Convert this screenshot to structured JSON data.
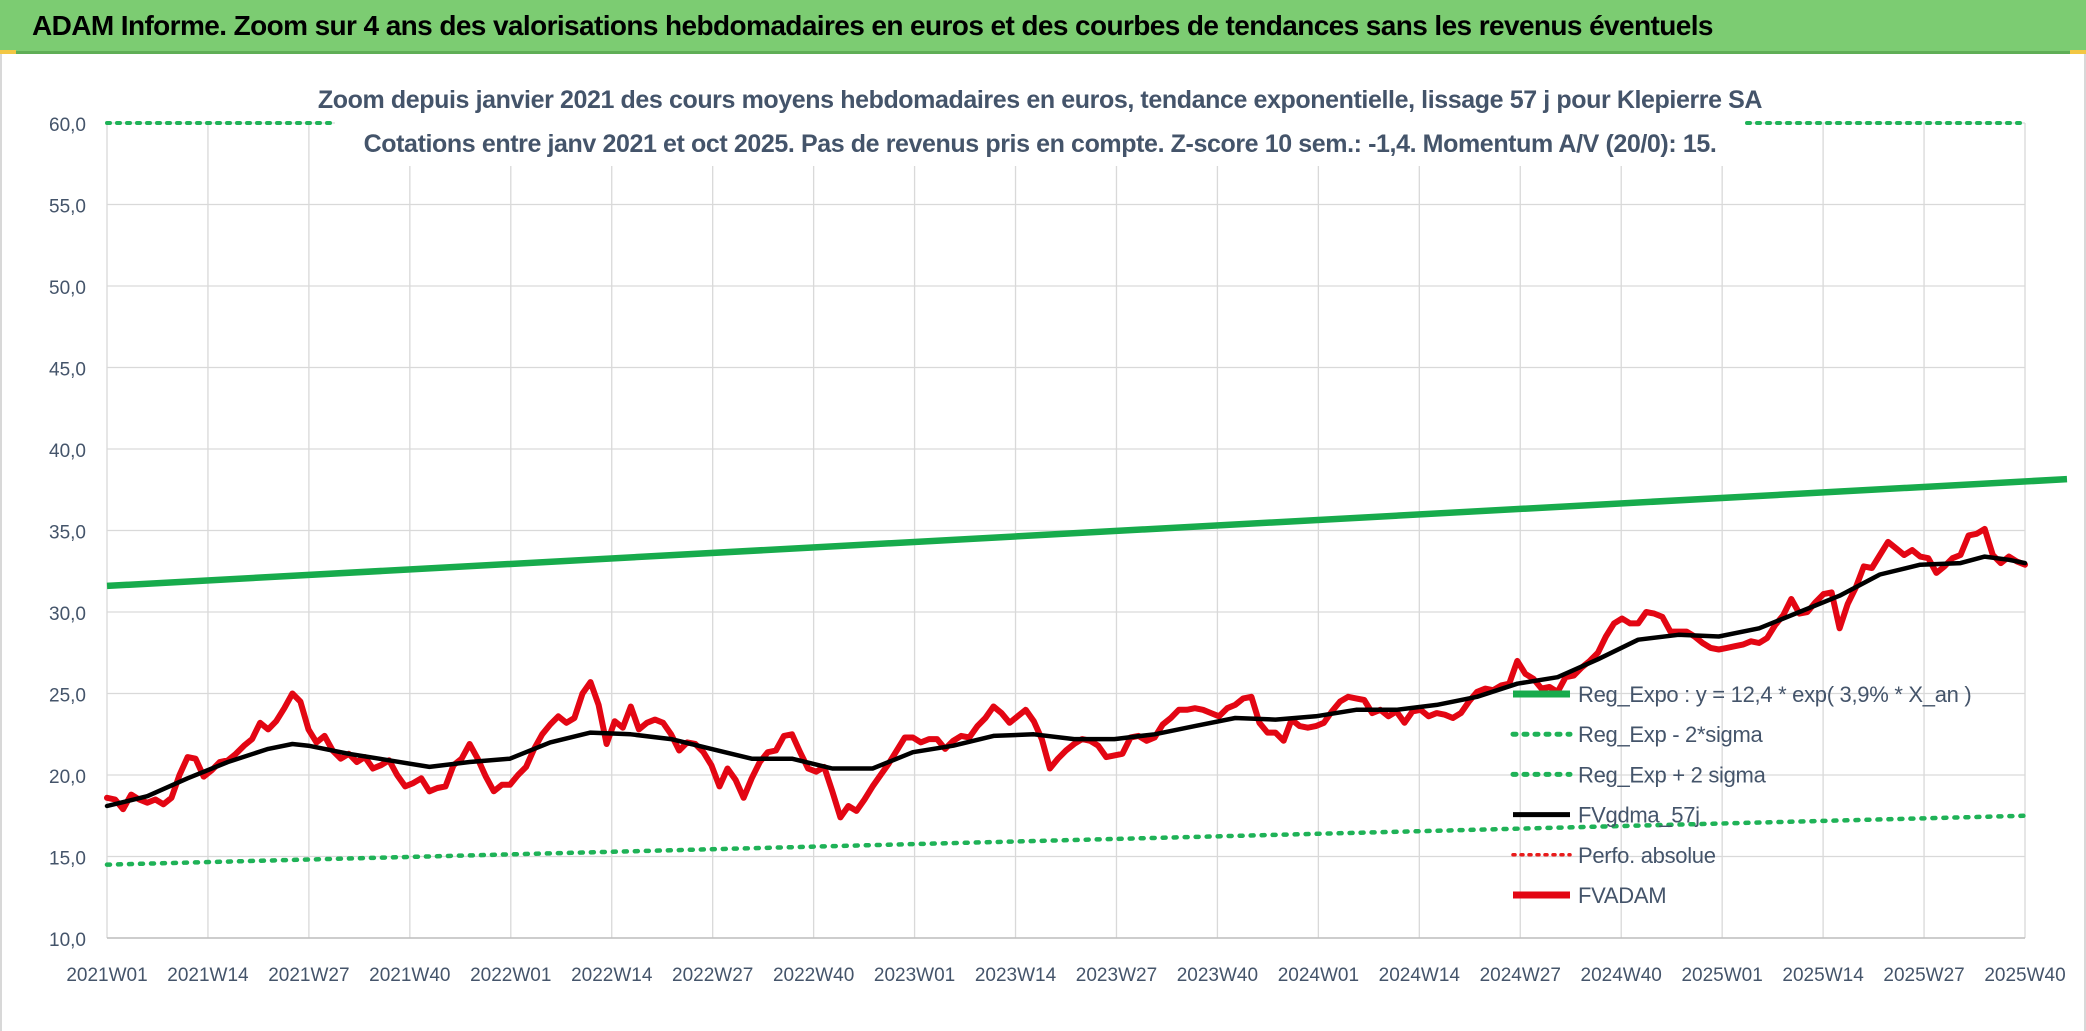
{
  "banner": {
    "title": "ADAM Informe. Zoom sur 4 ans des valorisations hebdomadaires en euros et des courbes de tendances sans les revenus éventuels"
  },
  "colors": {
    "banner_bg": "#7ccc72",
    "reg_expo": "#17ab4c",
    "reg_sigma": "#1fb257",
    "fvgdma": "#000000",
    "perfo": "#e81b1b",
    "fvadam": "#e30613",
    "text": "#44546a",
    "grid": "#d9d9d9"
  },
  "chart_data": {
    "type": "line",
    "title_line1": "Zoom depuis janvier 2021 des cours moyens hebdomadaires en euros, tendance exponentielle, lissage 57 j pour Klepierre SA",
    "title_line2": "Cotations entre janv 2021 et oct 2025. Pas de revenus pris en compte. Z-score 10 sem.: -1,4. Momentum A/V (20/0): 15.",
    "ylim": [
      10,
      60
    ],
    "y_ticks": [
      "10,0",
      "15,0",
      "20,0",
      "25,0",
      "30,0",
      "35,0",
      "40,0",
      "45,0",
      "50,0",
      "55,0",
      "60,0"
    ],
    "x_ticks": [
      "2021W01",
      "2021W14",
      "2021W27",
      "2021W40",
      "2022W01",
      "2022W14",
      "2022W27",
      "2022W40",
      "2023W01",
      "2023W14",
      "2023W27",
      "2023W40",
      "2024W01",
      "2024W14",
      "2024W27",
      "2024W40",
      "2025W01",
      "2025W14",
      "2025W27",
      "2025W40"
    ],
    "grid": true,
    "legend_position": "right-middle",
    "legend": [
      {
        "key": "reg_expo",
        "label": "Reg_Expo : y = 12,4 * exp( 3,9% *  X_an )",
        "style": "solid-thick"
      },
      {
        "key": "reg_minus",
        "label": "Reg_Exp - 2*sigma",
        "style": "dotted"
      },
      {
        "key": "reg_plus",
        "label": "Reg_Exp + 2 sigma",
        "style": "dotted"
      },
      {
        "key": "fvgdma",
        "label": "FVgdma_57j",
        "style": "solid"
      },
      {
        "key": "perfo",
        "label": "Perfo. absolue",
        "style": "dotted"
      },
      {
        "key": "fvadam",
        "label": "FVADAM",
        "style": "solid-thick"
      }
    ],
    "series": {
      "reg_expo": {
        "start": 31.6,
        "end": 38.1
      },
      "reg_minus": {
        "start": 14.5,
        "end": 17.5
      },
      "reg_plus": {
        "value": 60.0
      },
      "fvadam": [
        [
          0,
          18.6
        ],
        [
          1,
          18.5
        ],
        [
          2,
          17.9
        ],
        [
          3,
          18.8
        ],
        [
          4,
          18.5
        ],
        [
          5,
          18.3
        ],
        [
          6,
          18.5
        ],
        [
          7,
          18.2
        ],
        [
          8,
          18.6
        ],
        [
          9,
          20.0
        ],
        [
          10,
          21.1
        ],
        [
          11,
          21.0
        ],
        [
          12,
          19.9
        ],
        [
          13,
          20.3
        ],
        [
          14,
          20.8
        ],
        [
          15,
          20.9
        ],
        [
          16,
          21.3
        ],
        [
          17,
          21.8
        ],
        [
          18,
          22.2
        ],
        [
          19,
          23.2
        ],
        [
          20,
          22.8
        ],
        [
          21,
          23.3
        ],
        [
          22,
          24.1
        ],
        [
          23,
          25.0
        ],
        [
          24,
          24.5
        ],
        [
          25,
          22.8
        ],
        [
          26,
          22.0
        ],
        [
          27,
          22.4
        ],
        [
          28,
          21.5
        ],
        [
          29,
          21.0
        ],
        [
          30,
          21.3
        ],
        [
          31,
          20.8
        ],
        [
          32,
          21.1
        ],
        [
          33,
          20.4
        ],
        [
          34,
          20.6
        ],
        [
          35,
          20.9
        ],
        [
          36,
          20.0
        ],
        [
          37,
          19.3
        ],
        [
          38,
          19.5
        ],
        [
          39,
          19.8
        ],
        [
          40,
          19.0
        ],
        [
          41,
          19.2
        ],
        [
          42,
          19.3
        ],
        [
          43,
          20.6
        ],
        [
          44,
          21.0
        ],
        [
          45,
          21.9
        ],
        [
          46,
          21.0
        ],
        [
          47,
          19.9
        ],
        [
          48,
          19.0
        ],
        [
          49,
          19.4
        ],
        [
          50,
          19.4
        ],
        [
          51,
          20.0
        ],
        [
          52,
          20.5
        ],
        [
          53,
          21.6
        ],
        [
          54,
          22.5
        ],
        [
          55,
          23.1
        ],
        [
          56,
          23.6
        ],
        [
          57,
          23.2
        ],
        [
          58,
          23.5
        ],
        [
          59,
          25.0
        ],
        [
          60,
          25.7
        ],
        [
          61,
          24.3
        ],
        [
          62,
          21.9
        ],
        [
          63,
          23.3
        ],
        [
          64,
          22.9
        ],
        [
          65,
          24.2
        ],
        [
          66,
          22.8
        ],
        [
          67,
          23.2
        ],
        [
          68,
          23.4
        ],
        [
          69,
          23.2
        ],
        [
          70,
          22.5
        ],
        [
          71,
          21.5
        ],
        [
          72,
          22.0
        ],
        [
          73,
          21.9
        ],
        [
          74,
          21.4
        ],
        [
          75,
          20.6
        ],
        [
          76,
          19.3
        ],
        [
          77,
          20.4
        ],
        [
          78,
          19.7
        ],
        [
          79,
          18.6
        ],
        [
          80,
          19.8
        ],
        [
          81,
          20.8
        ],
        [
          82,
          21.4
        ],
        [
          83,
          21.5
        ],
        [
          84,
          22.4
        ],
        [
          85,
          22.5
        ],
        [
          86,
          21.4
        ],
        [
          87,
          20.4
        ],
        [
          88,
          20.2
        ],
        [
          89,
          20.5
        ],
        [
          90,
          19.0
        ],
        [
          91,
          17.4
        ],
        [
          92,
          18.1
        ],
        [
          93,
          17.8
        ],
        [
          94,
          18.5
        ],
        [
          95,
          19.3
        ],
        [
          96,
          20.0
        ],
        [
          97,
          20.7
        ],
        [
          98,
          21.5
        ],
        [
          99,
          22.3
        ],
        [
          100,
          22.3
        ],
        [
          101,
          22.0
        ],
        [
          102,
          22.2
        ],
        [
          103,
          22.2
        ],
        [
          104,
          21.6
        ],
        [
          105,
          22.1
        ],
        [
          106,
          22.4
        ],
        [
          107,
          22.3
        ],
        [
          108,
          23.0
        ],
        [
          109,
          23.5
        ],
        [
          110,
          24.2
        ],
        [
          111,
          23.8
        ],
        [
          112,
          23.2
        ],
        [
          113,
          23.6
        ],
        [
          114,
          24.0
        ],
        [
          115,
          23.3
        ],
        [
          116,
          22.2
        ],
        [
          117,
          20.4
        ],
        [
          118,
          21.0
        ],
        [
          119,
          21.5
        ],
        [
          120,
          21.9
        ],
        [
          121,
          22.2
        ],
        [
          122,
          22.1
        ],
        [
          123,
          21.8
        ],
        [
          124,
          21.1
        ],
        [
          125,
          21.2
        ],
        [
          126,
          21.3
        ],
        [
          127,
          22.3
        ],
        [
          128,
          22.4
        ],
        [
          129,
          22.1
        ],
        [
          130,
          22.3
        ],
        [
          131,
          23.1
        ],
        [
          132,
          23.5
        ],
        [
          133,
          24.0
        ],
        [
          134,
          24.0
        ],
        [
          135,
          24.1
        ],
        [
          136,
          24.0
        ],
        [
          137,
          23.8
        ],
        [
          138,
          23.6
        ],
        [
          139,
          24.1
        ],
        [
          140,
          24.3
        ],
        [
          141,
          24.7
        ],
        [
          142,
          24.8
        ],
        [
          143,
          23.2
        ],
        [
          144,
          22.6
        ],
        [
          145,
          22.6
        ],
        [
          146,
          22.1
        ],
        [
          147,
          23.4
        ],
        [
          148,
          23.0
        ],
        [
          149,
          22.9
        ],
        [
          150,
          23.0
        ],
        [
          151,
          23.2
        ],
        [
          152,
          23.9
        ],
        [
          153,
          24.5
        ],
        [
          154,
          24.8
        ],
        [
          155,
          24.7
        ],
        [
          156,
          24.6
        ],
        [
          157,
          23.8
        ],
        [
          158,
          24.0
        ],
        [
          159,
          23.6
        ],
        [
          160,
          23.9
        ],
        [
          161,
          23.2
        ],
        [
          162,
          23.9
        ],
        [
          163,
          24.0
        ],
        [
          164,
          23.6
        ],
        [
          165,
          23.8
        ],
        [
          166,
          23.7
        ],
        [
          167,
          23.5
        ],
        [
          168,
          23.8
        ],
        [
          169,
          24.5
        ],
        [
          170,
          25.1
        ],
        [
          171,
          25.3
        ],
        [
          172,
          25.2
        ],
        [
          173,
          25.5
        ],
        [
          174,
          25.6
        ],
        [
          175,
          27.0
        ],
        [
          176,
          26.2
        ],
        [
          177,
          25.9
        ],
        [
          178,
          25.3
        ],
        [
          179,
          25.4
        ],
        [
          180,
          25.1
        ],
        [
          181,
          26.0
        ],
        [
          182,
          26.1
        ],
        [
          183,
          26.6
        ],
        [
          184,
          27.0
        ],
        [
          185,
          27.5
        ],
        [
          186,
          28.5
        ],
        [
          187,
          29.3
        ],
        [
          188,
          29.6
        ],
        [
          189,
          29.3
        ],
        [
          190,
          29.3
        ],
        [
          191,
          30.0
        ],
        [
          192,
          29.9
        ],
        [
          193,
          29.7
        ],
        [
          194,
          28.8
        ],
        [
          195,
          28.8
        ],
        [
          196,
          28.8
        ],
        [
          197,
          28.5
        ],
        [
          198,
          28.1
        ],
        [
          199,
          27.8
        ],
        [
          200,
          27.7
        ],
        [
          201,
          27.8
        ],
        [
          202,
          27.9
        ],
        [
          203,
          28.0
        ],
        [
          204,
          28.2
        ],
        [
          205,
          28.1
        ],
        [
          206,
          28.4
        ],
        [
          207,
          29.2
        ],
        [
          208,
          29.8
        ],
        [
          209,
          30.8
        ],
        [
          210,
          29.9
        ],
        [
          211,
          30.0
        ],
        [
          212,
          30.6
        ],
        [
          213,
          31.1
        ],
        [
          214,
          31.2
        ],
        [
          215,
          29.0
        ],
        [
          216,
          30.5
        ],
        [
          217,
          31.5
        ],
        [
          218,
          32.8
        ],
        [
          219,
          32.7
        ],
        [
          220,
          33.5
        ],
        [
          221,
          34.3
        ],
        [
          222,
          33.9
        ],
        [
          223,
          33.5
        ],
        [
          224,
          33.8
        ],
        [
          225,
          33.4
        ],
        [
          226,
          33.3
        ],
        [
          227,
          32.4
        ],
        [
          228,
          32.8
        ],
        [
          229,
          33.3
        ],
        [
          230,
          33.5
        ],
        [
          231,
          34.7
        ],
        [
          232,
          34.8
        ],
        [
          233,
          35.1
        ],
        [
          234,
          33.5
        ],
        [
          235,
          33.0
        ],
        [
          236,
          33.4
        ],
        [
          237,
          33.1
        ],
        [
          238,
          32.9
        ]
      ],
      "fvgdma": [
        [
          0,
          18.1
        ],
        [
          5,
          18.7
        ],
        [
          10,
          19.8
        ],
        [
          15,
          20.8
        ],
        [
          20,
          21.6
        ],
        [
          23,
          21.9
        ],
        [
          25,
          21.8
        ],
        [
          30,
          21.3
        ],
        [
          35,
          20.9
        ],
        [
          40,
          20.5
        ],
        [
          45,
          20.8
        ],
        [
          50,
          21.0
        ],
        [
          55,
          22.0
        ],
        [
          60,
          22.6
        ],
        [
          65,
          22.5
        ],
        [
          70,
          22.2
        ],
        [
          75,
          21.6
        ],
        [
          80,
          21.0
        ],
        [
          85,
          21.0
        ],
        [
          90,
          20.4
        ],
        [
          95,
          20.4
        ],
        [
          100,
          21.4
        ],
        [
          105,
          21.8
        ],
        [
          110,
          22.4
        ],
        [
          115,
          22.5
        ],
        [
          120,
          22.2
        ],
        [
          125,
          22.2
        ],
        [
          130,
          22.5
        ],
        [
          135,
          23.0
        ],
        [
          140,
          23.5
        ],
        [
          145,
          23.4
        ],
        [
          150,
          23.6
        ],
        [
          155,
          24.0
        ],
        [
          160,
          24.0
        ],
        [
          165,
          24.3
        ],
        [
          170,
          24.8
        ],
        [
          175,
          25.6
        ],
        [
          180,
          26.0
        ],
        [
          185,
          27.1
        ],
        [
          190,
          28.3
        ],
        [
          195,
          28.6
        ],
        [
          200,
          28.5
        ],
        [
          205,
          29.0
        ],
        [
          210,
          30.0
        ],
        [
          215,
          31.0
        ],
        [
          220,
          32.3
        ],
        [
          225,
          32.9
        ],
        [
          230,
          33.0
        ],
        [
          233,
          33.4
        ],
        [
          236,
          33.2
        ],
        [
          238,
          33.0
        ]
      ]
    }
  }
}
